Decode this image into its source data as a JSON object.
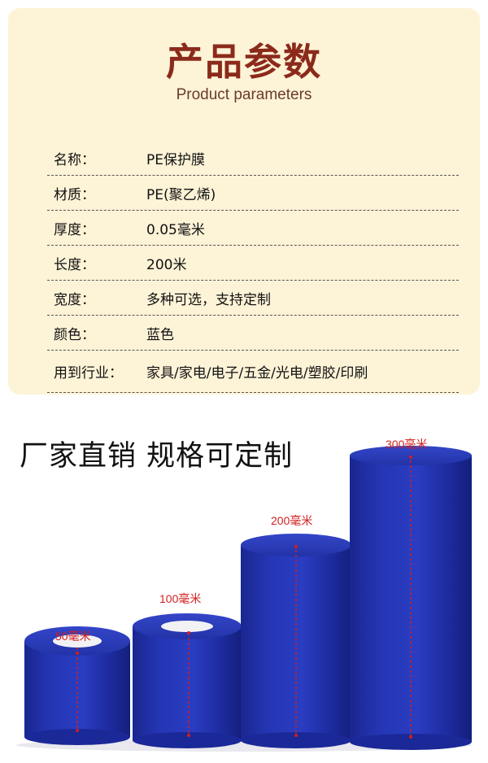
{
  "header": {
    "title": "产品参数",
    "subtitle": "Product parameters"
  },
  "params": [
    {
      "label": "名称：",
      "value": "PE保护膜"
    },
    {
      "label": "材质：",
      "value": "PE(聚乙烯)"
    },
    {
      "label": "厚度：",
      "value": "0.05毫米"
    },
    {
      "label": "长度：",
      "value": "200米"
    },
    {
      "label": "宽度：",
      "value": "多种可选，支持定制"
    },
    {
      "label": "颜色：",
      "value": "蓝色"
    },
    {
      "label": "用到行业：",
      "value": "家具/家电/电子/五金/光电/塑胶/印刷"
    }
  ],
  "promo": {
    "slogan": "厂家直销 规格可定制"
  },
  "rolls": [
    {
      "size_label": "50毫米"
    },
    {
      "size_label": "100毫米"
    },
    {
      "size_label": "200毫米"
    },
    {
      "size_label": "300毫米"
    }
  ],
  "colors": {
    "card_bg": "#fdf3d7",
    "title": "#8b2a1b",
    "film_blue": "#1e2fa8",
    "measure_red": "#d21f1f"
  }
}
